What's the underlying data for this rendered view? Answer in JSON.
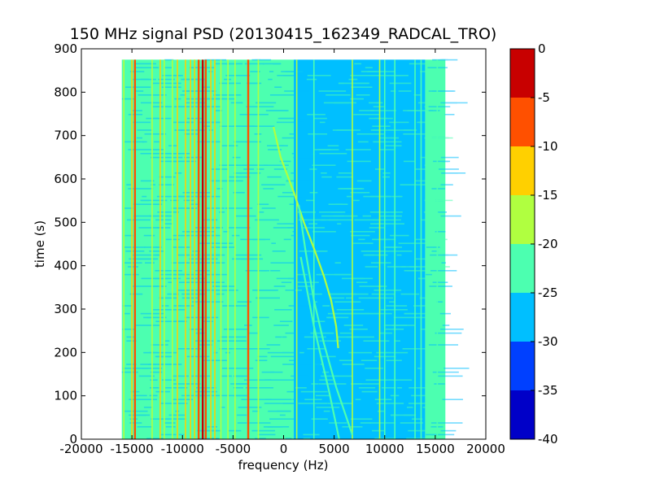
{
  "chart_data": {
    "type": "heatmap",
    "title": "150 MHz signal PSD (20130415_162349_RADCAL_TRO)",
    "xlabel": "frequency (Hz)",
    "ylabel": "time (s)",
    "xlim": [
      -20000,
      20000
    ],
    "ylim": [
      0,
      900
    ],
    "x_data_range": [
      -16000,
      16000
    ],
    "y_data_range": [
      0,
      875
    ],
    "xticks": [
      -20000,
      -15000,
      -10000,
      -5000,
      0,
      5000,
      10000,
      15000,
      20000
    ],
    "yticks": [
      0,
      100,
      200,
      300,
      400,
      500,
      600,
      700,
      800,
      900
    ],
    "colorbar": {
      "ticks": [
        -40,
        -35,
        -30,
        -25,
        -20,
        -15,
        -10,
        -5,
        0
      ],
      "levels": [
        {
          "range": [
            -40,
            -35
          ],
          "color": "#0000c8"
        },
        {
          "range": [
            -35,
            -30
          ],
          "color": "#0040ff"
        },
        {
          "range": [
            -30,
            -25
          ],
          "color": "#00bfff"
        },
        {
          "range": [
            -25,
            -20
          ],
          "color": "#4cffb0"
        },
        {
          "range": [
            -20,
            -15
          ],
          "color": "#b0ff40"
        },
        {
          "range": [
            -15,
            -10
          ],
          "color": "#ffd000"
        },
        {
          "range": [
            -10,
            -5
          ],
          "color": "#ff5000"
        },
        {
          "range": [
            -5,
            0
          ],
          "color": "#c80000"
        }
      ]
    },
    "background_regions": [
      {
        "x": [
          -16000,
          1000
        ],
        "level": -22.5
      },
      {
        "x": [
          1000,
          14000
        ],
        "level": -27.5
      },
      {
        "x": [
          14000,
          16000
        ],
        "level": -22.5
      }
    ],
    "vertical_lines": [
      {
        "x": -15800,
        "level": -17.5
      },
      {
        "x": -15000,
        "level": -12.5
      },
      {
        "x": -14700,
        "level": -7.5
      },
      {
        "x": -13000,
        "level": -17.5
      },
      {
        "x": -12200,
        "level": -12.5
      },
      {
        "x": -11800,
        "level": -17.5
      },
      {
        "x": -11000,
        "level": -17.5
      },
      {
        "x": -10500,
        "level": -12.5
      },
      {
        "x": -9700,
        "level": -12.5
      },
      {
        "x": -9200,
        "level": -12.5
      },
      {
        "x": -8800,
        "level": -12.5
      },
      {
        "x": -8400,
        "level": -7.5
      },
      {
        "x": -8000,
        "level": -2.5
      },
      {
        "x": -7700,
        "level": -7.5
      },
      {
        "x": -7200,
        "level": -12.5
      },
      {
        "x": -6800,
        "level": -12.5
      },
      {
        "x": -6200,
        "level": -17.5
      },
      {
        "x": -5500,
        "level": -17.5
      },
      {
        "x": -4800,
        "level": -17.5
      },
      {
        "x": -3500,
        "level": -7.5
      },
      {
        "x": -2500,
        "level": -17.5
      },
      {
        "x": 1300,
        "level": -17.5
      },
      {
        "x": 3000,
        "level": -22.5
      },
      {
        "x": 6800,
        "level": -17.5
      },
      {
        "x": 9500,
        "level": -17.5
      },
      {
        "x": 10000,
        "level": -22.5
      },
      {
        "x": 11000,
        "level": -22.5
      },
      {
        "x": 13000,
        "level": -22.5
      },
      {
        "x": 13600,
        "level": -22.5
      },
      {
        "x": 15200,
        "level": -22.5
      }
    ],
    "tracks": [
      {
        "name": "",
        "level": -17.5,
        "points": [
          [
            -1000,
            720
          ],
          [
            -300,
            650
          ],
          [
            1000,
            570
          ],
          [
            2000,
            500
          ],
          [
            3000,
            440
          ],
          [
            4000,
            375
          ],
          [
            4700,
            320
          ],
          [
            5200,
            260
          ],
          [
            5400,
            210
          ]
        ]
      },
      {
        "name": "",
        "level": -22.5,
        "points": [
          [
            1500,
            540
          ],
          [
            2200,
            430
          ],
          [
            3000,
            320
          ],
          [
            4000,
            220
          ],
          [
            5200,
            120
          ],
          [
            6800,
            10
          ]
        ]
      },
      {
        "name": "",
        "level": -22.5,
        "points": [
          [
            1700,
            420
          ],
          [
            3000,
            260
          ],
          [
            4500,
            110
          ],
          [
            5500,
            0
          ]
        ]
      }
    ]
  }
}
